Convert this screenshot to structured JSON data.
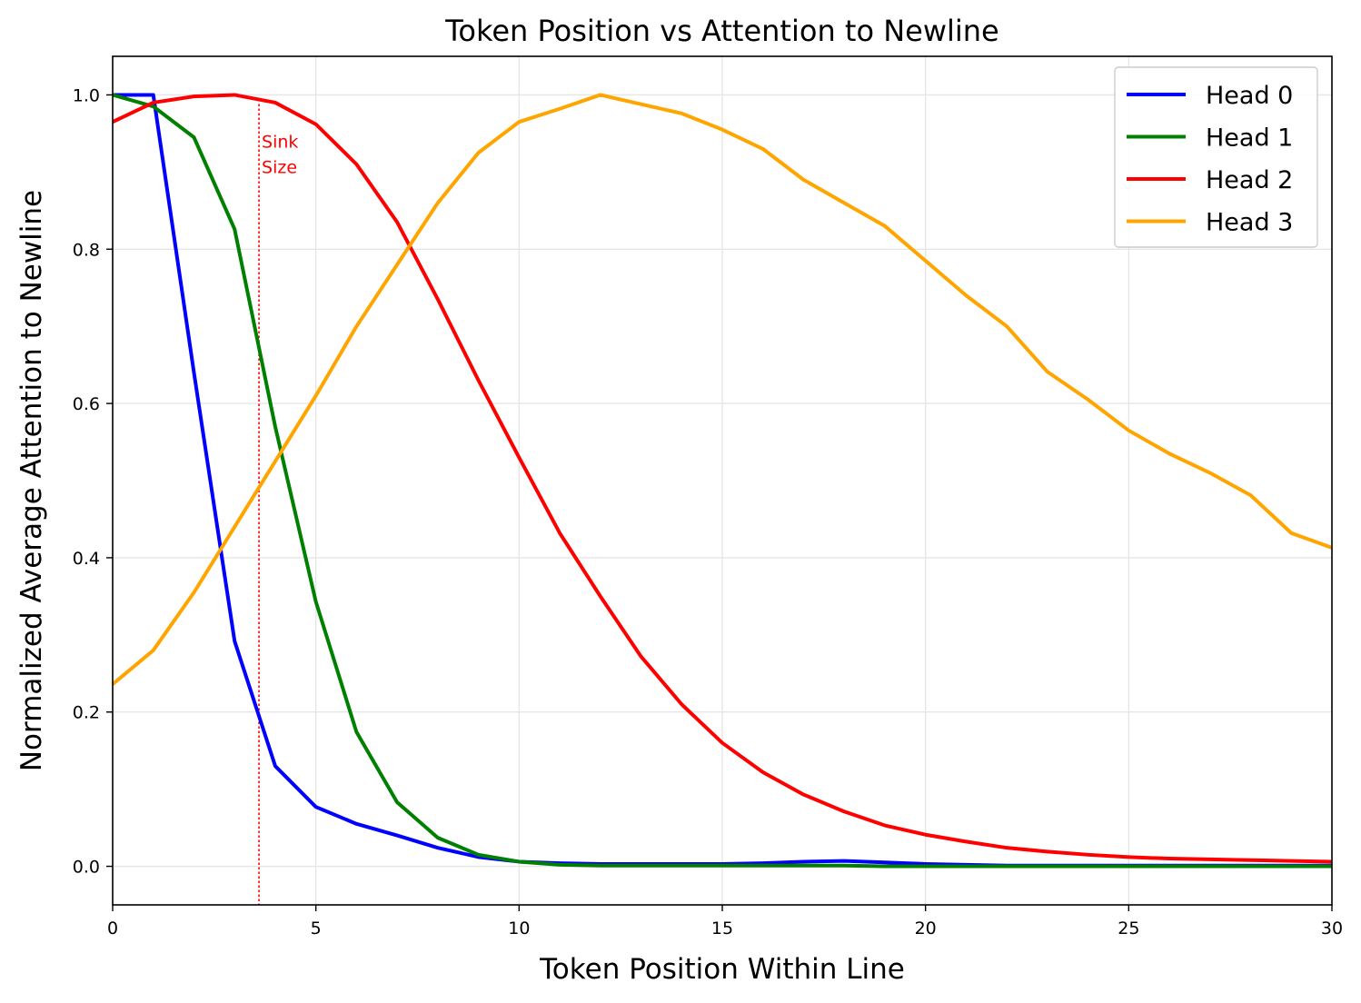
{
  "chart_data": {
    "type": "line",
    "title": "Token Position vs Attention to Newline",
    "xlabel": "Token Position Within Line",
    "ylabel": "Normalized Average Attention to Newline",
    "xlim": [
      0,
      30
    ],
    "ylim": [
      -0.05,
      1.05
    ],
    "xticks": [
      0,
      5,
      10,
      15,
      20,
      25,
      30
    ],
    "yticks": [
      0.0,
      0.2,
      0.4,
      0.6,
      0.8,
      1.0
    ],
    "xtick_labels": [
      "0",
      "5",
      "10",
      "15",
      "20",
      "25",
      "30"
    ],
    "ytick_labels": [
      "0.0",
      "0.2",
      "0.4",
      "0.6",
      "0.8",
      "1.0"
    ],
    "grid": true,
    "legend_position": "top-right",
    "x": [
      0,
      1,
      2,
      3,
      4,
      5,
      6,
      7,
      8,
      9,
      10,
      11,
      12,
      13,
      14,
      15,
      16,
      17,
      18,
      19,
      20,
      21,
      22,
      23,
      24,
      25,
      26,
      27,
      28,
      29,
      30
    ],
    "series": [
      {
        "name": "Head 0",
        "color": "#0000ff",
        "values": [
          1.0,
          1.0,
          0.64,
          0.292,
          0.13,
          0.077,
          0.055,
          0.04,
          0.024,
          0.012,
          0.006,
          0.004,
          0.003,
          0.003,
          0.003,
          0.003,
          0.004,
          0.006,
          0.007,
          0.005,
          0.003,
          0.002,
          0.001,
          0.001,
          0.001,
          0.001,
          0.001,
          0.001,
          0.001,
          0.001,
          0.001
        ]
      },
      {
        "name": "Head 1",
        "color": "#008000",
        "values": [
          1.0,
          0.985,
          0.945,
          0.826,
          0.57,
          0.343,
          0.174,
          0.083,
          0.037,
          0.015,
          0.006,
          0.002,
          0.001,
          0.001,
          0.001,
          0.001,
          0.001,
          0.001,
          0.001,
          0.0,
          0.0,
          0.0,
          0.0,
          0.0,
          0.0,
          0.0,
          0.0,
          0.0,
          0.0,
          0.0,
          0.0
        ]
      },
      {
        "name": "Head 2",
        "color": "#ff0000",
        "values": [
          0.965,
          0.99,
          0.998,
          1.0,
          0.99,
          0.962,
          0.91,
          0.835,
          0.735,
          0.63,
          0.53,
          0.432,
          0.35,
          0.272,
          0.21,
          0.16,
          0.122,
          0.093,
          0.071,
          0.053,
          0.041,
          0.032,
          0.024,
          0.019,
          0.015,
          0.012,
          0.01,
          0.009,
          0.008,
          0.007,
          0.006
        ]
      },
      {
        "name": "Head 3",
        "color": "#ffa500",
        "values": [
          0.236,
          0.28,
          0.355,
          0.44,
          0.525,
          0.61,
          0.7,
          0.78,
          0.86,
          0.925,
          0.965,
          0.982,
          1.0,
          0.988,
          0.976,
          0.955,
          0.93,
          0.89,
          0.86,
          0.83,
          0.785,
          0.74,
          0.7,
          0.641,
          0.605,
          0.565,
          0.535,
          0.51,
          0.481,
          0.432,
          0.413
        ]
      }
    ],
    "annotation": {
      "label_line1": "Sink",
      "label_line2": "Size",
      "x": 3.6,
      "color": "#ff0000"
    }
  }
}
